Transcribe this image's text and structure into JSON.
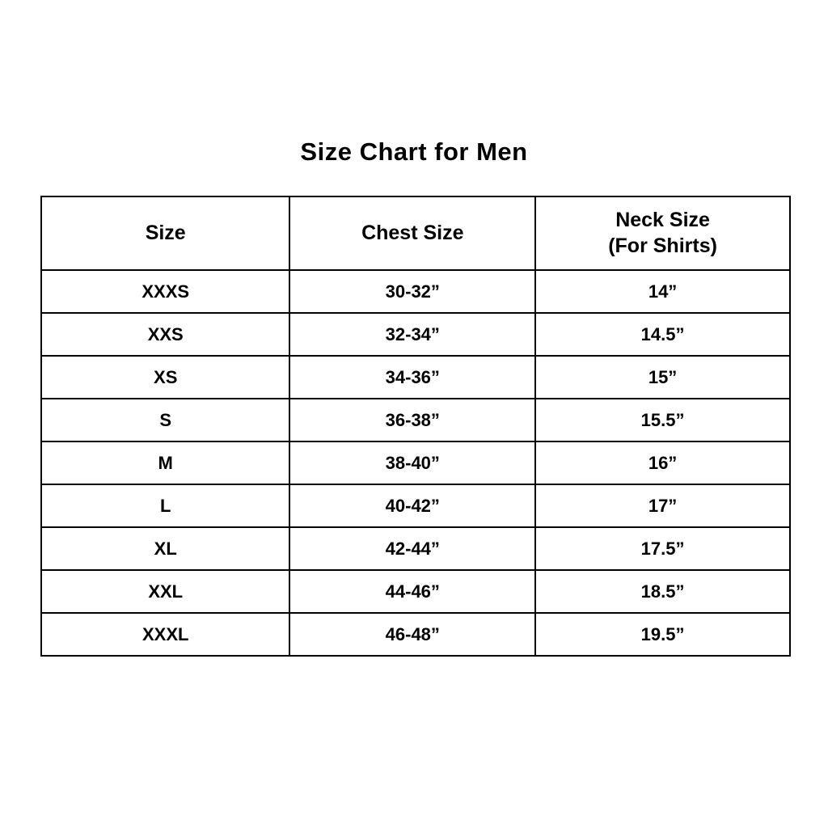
{
  "title": "Size Chart for Men",
  "table": {
    "columns": [
      {
        "label": "Size",
        "sublabel": ""
      },
      {
        "label": "Chest Size",
        "sublabel": ""
      },
      {
        "label": "Neck Size",
        "sublabel": "(For Shirts)"
      }
    ],
    "rows": [
      {
        "size": "XXXS",
        "chest": "30-32”",
        "neck": "14”"
      },
      {
        "size": "XXS",
        "chest": "32-34”",
        "neck": "14.5”"
      },
      {
        "size": "XS",
        "chest": "34-36”",
        "neck": "15”"
      },
      {
        "size": "S",
        "chest": "36-38”",
        "neck": "15.5”"
      },
      {
        "size": "M",
        "chest": "38-40”",
        "neck": "16”"
      },
      {
        "size": "L",
        "chest": "40-42”",
        "neck": "17”"
      },
      {
        "size": "XL",
        "chest": "42-44”",
        "neck": "17.5”"
      },
      {
        "size": "XXL",
        "chest": "44-46”",
        "neck": "18.5”"
      },
      {
        "size": "XXXL",
        "chest": "46-48”",
        "neck": "19.5”"
      }
    ]
  },
  "colors": {
    "background": "#ffffff",
    "text": "#000000",
    "border": "#000000"
  },
  "chart_data": {
    "type": "table",
    "title": "Size Chart for Men",
    "categories": [
      "Size",
      "Chest Size",
      "Neck Size (For Shirts)"
    ],
    "series": [
      {
        "name": "Size",
        "values": [
          "XXXS",
          "XXS",
          "XS",
          "S",
          "M",
          "L",
          "XL",
          "XXL",
          "XXXL"
        ]
      },
      {
        "name": "Chest Size",
        "values": [
          "30-32”",
          "32-34”",
          "34-36”",
          "36-38”",
          "38-40”",
          "40-42”",
          "42-44”",
          "44-46”",
          "46-48”"
        ]
      },
      {
        "name": "Neck Size (For Shirts)",
        "values": [
          "14”",
          "14.5”",
          "15”",
          "15.5”",
          "16”",
          "17”",
          "17.5”",
          "18.5”",
          "19.5”"
        ]
      }
    ]
  }
}
